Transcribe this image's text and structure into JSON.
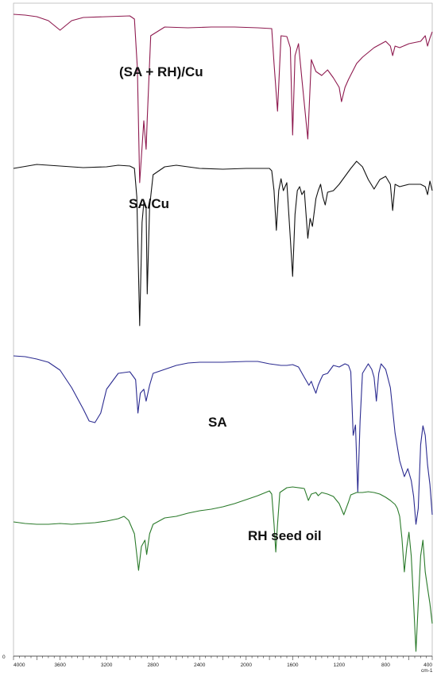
{
  "chart_data": {
    "type": "line",
    "title": "",
    "xlabel": "cm-1",
    "ylabel": "",
    "xlim": [
      4000,
      400
    ],
    "x_reversed": true,
    "grid": false,
    "legend": "none",
    "xticks": [
      4000,
      3600,
      3200,
      2800,
      2400,
      2000,
      1600,
      1200,
      800,
      400
    ],
    "xtick_labels": [
      "4000",
      "3600",
      "3200",
      "2800",
      "2400",
      "2000",
      "1600",
      "1200",
      "800",
      "400"
    ],
    "y_axis_zero_label": "0",
    "series": [
      {
        "name": "(SA + RH)/Cu",
        "color": "#8e1a4f",
        "points": [
          [
            4000,
            18
          ],
          [
            3900,
            19
          ],
          [
            3800,
            21
          ],
          [
            3700,
            26
          ],
          [
            3600,
            38
          ],
          [
            3500,
            26
          ],
          [
            3400,
            22
          ],
          [
            3200,
            21
          ],
          [
            3000,
            20
          ],
          [
            2960,
            24
          ],
          [
            2935,
            86
          ],
          [
            2915,
            230
          ],
          [
            2880,
            152
          ],
          [
            2860,
            188
          ],
          [
            2850,
            150
          ],
          [
            2820,
            45
          ],
          [
            2700,
            34
          ],
          [
            2500,
            35
          ],
          [
            2300,
            34
          ],
          [
            2100,
            34
          ],
          [
            1900,
            35
          ],
          [
            1780,
            36
          ],
          [
            1760,
            80
          ],
          [
            1730,
            140
          ],
          [
            1700,
            45
          ],
          [
            1650,
            46
          ],
          [
            1620,
            60
          ],
          [
            1600,
            170
          ],
          [
            1580,
            70
          ],
          [
            1550,
            55
          ],
          [
            1520,
            100
          ],
          [
            1470,
            175
          ],
          [
            1440,
            75
          ],
          [
            1400,
            90
          ],
          [
            1350,
            95
          ],
          [
            1300,
            88
          ],
          [
            1250,
            98
          ],
          [
            1200,
            110
          ],
          [
            1180,
            128
          ],
          [
            1150,
            110
          ],
          [
            1120,
            100
          ],
          [
            1050,
            80
          ],
          [
            1000,
            72
          ],
          [
            950,
            66
          ],
          [
            900,
            60
          ],
          [
            850,
            56
          ],
          [
            800,
            52
          ],
          [
            760,
            58
          ],
          [
            740,
            70
          ],
          [
            720,
            58
          ],
          [
            680,
            60
          ],
          [
            600,
            55
          ],
          [
            500,
            52
          ],
          [
            460,
            45
          ],
          [
            440,
            58
          ],
          [
            420,
            48
          ],
          [
            400,
            40
          ]
        ]
      },
      {
        "name": "SA/Cu",
        "color": "#111111",
        "points": [
          [
            4000,
            212
          ],
          [
            3800,
            207
          ],
          [
            3600,
            209
          ],
          [
            3400,
            211
          ],
          [
            3200,
            210
          ],
          [
            3100,
            208
          ],
          [
            3000,
            209
          ],
          [
            2960,
            212
          ],
          [
            2940,
            248
          ],
          [
            2915,
            410
          ],
          [
            2895,
            280
          ],
          [
            2880,
            255
          ],
          [
            2860,
            262
          ],
          [
            2850,
            370
          ],
          [
            2830,
            260
          ],
          [
            2800,
            220
          ],
          [
            2700,
            210
          ],
          [
            2600,
            208
          ],
          [
            2400,
            212
          ],
          [
            2200,
            213
          ],
          [
            2000,
            212
          ],
          [
            1900,
            212
          ],
          [
            1800,
            212
          ],
          [
            1780,
            215
          ],
          [
            1760,
            240
          ],
          [
            1740,
            290
          ],
          [
            1720,
            240
          ],
          [
            1700,
            225
          ],
          [
            1680,
            240
          ],
          [
            1650,
            230
          ],
          [
            1620,
            300
          ],
          [
            1600,
            348
          ],
          [
            1580,
            270
          ],
          [
            1560,
            240
          ],
          [
            1540,
            235
          ],
          [
            1520,
            245
          ],
          [
            1500,
            240
          ],
          [
            1470,
            300
          ],
          [
            1450,
            275
          ],
          [
            1430,
            285
          ],
          [
            1400,
            250
          ],
          [
            1380,
            240
          ],
          [
            1360,
            232
          ],
          [
            1340,
            248
          ],
          [
            1320,
            258
          ],
          [
            1300,
            242
          ],
          [
            1250,
            240
          ],
          [
            1200,
            232
          ],
          [
            1150,
            222
          ],
          [
            1100,
            212
          ],
          [
            1050,
            203
          ],
          [
            1000,
            210
          ],
          [
            950,
            226
          ],
          [
            900,
            238
          ],
          [
            850,
            226
          ],
          [
            800,
            222
          ],
          [
            760,
            232
          ],
          [
            740,
            265
          ],
          [
            720,
            232
          ],
          [
            680,
            235
          ],
          [
            600,
            232
          ],
          [
            500,
            232
          ],
          [
            460,
            235
          ],
          [
            440,
            245
          ],
          [
            420,
            228
          ],
          [
            400,
            240
          ]
        ]
      },
      {
        "name": "SA",
        "color": "#2b2b90",
        "points": [
          [
            4000,
            448
          ],
          [
            3900,
            449
          ],
          [
            3800,
            452
          ],
          [
            3700,
            456
          ],
          [
            3600,
            466
          ],
          [
            3500,
            488
          ],
          [
            3400,
            515
          ],
          [
            3350,
            530
          ],
          [
            3300,
            532
          ],
          [
            3250,
            520
          ],
          [
            3200,
            490
          ],
          [
            3100,
            470
          ],
          [
            3000,
            468
          ],
          [
            2950,
            478
          ],
          [
            2930,
            520
          ],
          [
            2910,
            495
          ],
          [
            2880,
            490
          ],
          [
            2860,
            505
          ],
          [
            2830,
            485
          ],
          [
            2800,
            470
          ],
          [
            2700,
            465
          ],
          [
            2600,
            460
          ],
          [
            2500,
            457
          ],
          [
            2400,
            456
          ],
          [
            2200,
            456
          ],
          [
            2000,
            455
          ],
          [
            1900,
            455
          ],
          [
            1800,
            458
          ],
          [
            1700,
            460
          ],
          [
            1650,
            460
          ],
          [
            1600,
            459
          ],
          [
            1550,
            462
          ],
          [
            1500,
            475
          ],
          [
            1460,
            485
          ],
          [
            1440,
            480
          ],
          [
            1420,
            488
          ],
          [
            1400,
            495
          ],
          [
            1380,
            485
          ],
          [
            1360,
            478
          ],
          [
            1340,
            472
          ],
          [
            1300,
            470
          ],
          [
            1250,
            460
          ],
          [
            1200,
            462
          ],
          [
            1150,
            458
          ],
          [
            1120,
            460
          ],
          [
            1100,
            468
          ],
          [
            1080,
            548
          ],
          [
            1060,
            535
          ],
          [
            1040,
            620
          ],
          [
            1020,
            530
          ],
          [
            1000,
            470
          ],
          [
            950,
            458
          ],
          [
            920,
            465
          ],
          [
            900,
            475
          ],
          [
            880,
            505
          ],
          [
            860,
            470
          ],
          [
            840,
            458
          ],
          [
            800,
            465
          ],
          [
            760,
            488
          ],
          [
            720,
            545
          ],
          [
            680,
            580
          ],
          [
            640,
            600
          ],
          [
            610,
            590
          ],
          [
            580,
            605
          ],
          [
            560,
            625
          ],
          [
            540,
            660
          ],
          [
            520,
            640
          ],
          [
            500,
            560
          ],
          [
            480,
            536
          ],
          [
            460,
            548
          ],
          [
            440,
            585
          ],
          [
            420,
            610
          ],
          [
            400,
            648
          ]
        ]
      },
      {
        "name": "RH seed oil",
        "color": "#2a7a2a",
        "points": [
          [
            4000,
            657
          ],
          [
            3900,
            659
          ],
          [
            3800,
            660
          ],
          [
            3700,
            660
          ],
          [
            3600,
            659
          ],
          [
            3500,
            660
          ],
          [
            3400,
            659
          ],
          [
            3300,
            658
          ],
          [
            3200,
            656
          ],
          [
            3100,
            653
          ],
          [
            3050,
            650
          ],
          [
            3010,
            655
          ],
          [
            2960,
            672
          ],
          [
            2925,
            718
          ],
          [
            2900,
            688
          ],
          [
            2870,
            680
          ],
          [
            2855,
            698
          ],
          [
            2830,
            672
          ],
          [
            2800,
            660
          ],
          [
            2700,
            652
          ],
          [
            2600,
            650
          ],
          [
            2500,
            646
          ],
          [
            2400,
            643
          ],
          [
            2300,
            641
          ],
          [
            2200,
            638
          ],
          [
            2100,
            634
          ],
          [
            2000,
            629
          ],
          [
            1900,
            624
          ],
          [
            1800,
            618
          ],
          [
            1780,
            622
          ],
          [
            1760,
            660
          ],
          [
            1745,
            695
          ],
          [
            1730,
            660
          ],
          [
            1710,
            620
          ],
          [
            1650,
            614
          ],
          [
            1600,
            613
          ],
          [
            1500,
            615
          ],
          [
            1465,
            630
          ],
          [
            1440,
            622
          ],
          [
            1400,
            620
          ],
          [
            1380,
            624
          ],
          [
            1350,
            620
          ],
          [
            1300,
            622
          ],
          [
            1250,
            625
          ],
          [
            1200,
            634
          ],
          [
            1160,
            648
          ],
          [
            1120,
            632
          ],
          [
            1100,
            623
          ],
          [
            1050,
            620
          ],
          [
            1000,
            620
          ],
          [
            950,
            619
          ],
          [
            900,
            620
          ],
          [
            850,
            622
          ],
          [
            800,
            626
          ],
          [
            760,
            630
          ],
          [
            720,
            635
          ],
          [
            700,
            640
          ],
          [
            680,
            650
          ],
          [
            660,
            678
          ],
          [
            640,
            720
          ],
          [
            620,
            690
          ],
          [
            600,
            670
          ],
          [
            580,
            700
          ],
          [
            560,
            760
          ],
          [
            540,
            820
          ],
          [
            520,
            760
          ],
          [
            500,
            700
          ],
          [
            480,
            680
          ],
          [
            460,
            720
          ],
          [
            440,
            740
          ],
          [
            420,
            760
          ],
          [
            400,
            785
          ]
        ]
      }
    ]
  }
}
